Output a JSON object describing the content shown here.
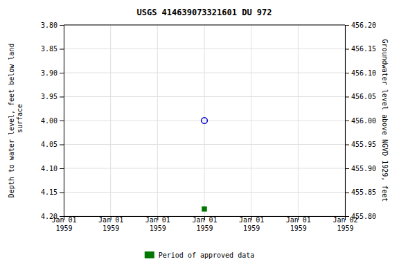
{
  "chart_data": {
    "type": "scatter",
    "title": "USGS 414639073321601 DU 972",
    "ylabel": "Depth to water level, feet below land\n surface",
    "y2label": "Groundwater level above NGVD 1929, feet",
    "categories": [
      "Jan 01\n1959",
      "Jan 01\n1959",
      "Jan 01\n1959",
      "Jan 01\n1959",
      "Jan 01\n1959",
      "Jan 01\n1959",
      "Jan 02\n1959"
    ],
    "series": [
      {
        "color": "#0000cc",
        "marker": "circle",
        "values": [
          null,
          null,
          null,
          4.0,
          null,
          null,
          null
        ]
      },
      {
        "name": "Period of approved data",
        "color": "#007700",
        "marker": "square",
        "values": [
          null,
          null,
          null,
          4.185,
          null,
          null,
          null
        ]
      }
    ],
    "ylim": [
      4.2,
      3.8
    ],
    "yticks": [
      {
        "value": 3.8,
        "label": "3.80"
      },
      3.85,
      {
        "value": 3.9,
        "label": "3.90"
      },
      3.95,
      {
        "value": 4.0,
        "label": "4.00"
      },
      4.05,
      {
        "value": 4.1,
        "label": "4.10"
      },
      4.15,
      {
        "value": 4.2,
        "label": "4.20"
      }
    ],
    "y2lim": [
      455.8,
      456.2
    ],
    "y2ticks": [
      {
        "value": 456.2,
        "label": "456.20"
      },
      456.15,
      {
        "value": 456.1,
        "label": "456.10"
      },
      456.05,
      {
        "value": 456.0,
        "label": "456.00"
      },
      455.95,
      {
        "value": 455.9,
        "label": "455.90"
      },
      455.85,
      {
        "value": 455.8,
        "label": "455.80"
      }
    ],
    "grid": true,
    "legend": "bottom"
  }
}
